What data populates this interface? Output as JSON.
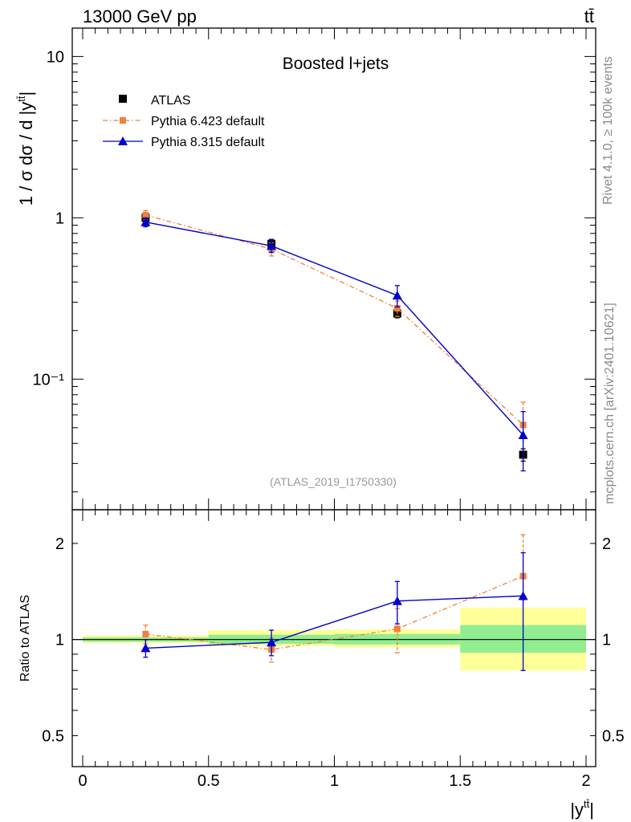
{
  "header": {
    "energy_label": "13000 GeV pp",
    "process_label": "tt̄"
  },
  "side_text": {
    "rivet": "Rivet 4.1.0, ≥ 100k events",
    "source": "mcplots.cern.ch [arXiv:2401.10621]"
  },
  "colors": {
    "atlas": "#000000",
    "pythia6": "#f0803c",
    "pythia8": "#0000cc",
    "band_inner": "#90ee90",
    "band_outer": "#ffff99"
  },
  "chart_data": [
    {
      "type": "scatter",
      "title": "Boosted l+jets",
      "watermark": "(ATLAS_2019_I1750330)",
      "ylabel": "1 / σ dσ / d |y^{t̄t}|",
      "yscale": "log",
      "ylim": [
        0.0155,
        15
      ],
      "xlim": [
        -0.05,
        2.05
      ],
      "y_tick_labels": [
        "10",
        "1",
        "10⁻¹"
      ],
      "legend": [
        "ATLAS",
        "Pythia 6.423 default",
        "Pythia 8.315 default"
      ],
      "legend_position": "top-left",
      "x": [
        0.25,
        0.75,
        1.25,
        1.75
      ],
      "x_bin_edges": [
        0,
        0.5,
        1,
        1.5,
        2
      ],
      "series": [
        {
          "name": "ATLAS",
          "values": [
            1.0,
            0.69,
            0.255,
            0.034
          ],
          "errors": [
            0.035,
            0.045,
            0.015,
            0.003
          ]
        },
        {
          "name": "Pythia 6.423 default",
          "values": [
            1.04,
            0.64,
            0.275,
            0.052
          ],
          "errors": [
            0.07,
            0.06,
            0.03,
            0.02
          ]
        },
        {
          "name": "Pythia 8.315 default",
          "values": [
            0.94,
            0.67,
            0.33,
            0.045
          ],
          "errors": [
            0.06,
            0.06,
            0.05,
            0.018
          ]
        }
      ]
    },
    {
      "type": "scatter",
      "ylabel": "Ratio to ATLAS",
      "xlabel": "|y^{tt̄}|",
      "yscale": "log",
      "ylim": [
        0.4,
        2.55
      ],
      "xlim": [
        -0.05,
        2.05
      ],
      "x_tick_labels": [
        "0",
        "0.5",
        "1",
        "1.5",
        "2"
      ],
      "y_tick_labels": [
        "2",
        "1",
        "0.5"
      ],
      "x": [
        0.25,
        0.75,
        1.25,
        1.75
      ],
      "bands": {
        "inner": [
          [
            0.985,
            1.015
          ],
          [
            0.97,
            1.035
          ],
          [
            0.965,
            1.04
          ],
          [
            0.91,
            1.11
          ]
        ],
        "outer": [
          [
            0.975,
            1.03
          ],
          [
            0.955,
            1.07
          ],
          [
            0.945,
            1.075
          ],
          [
            0.8,
            1.26
          ]
        ]
      },
      "series": [
        {
          "name": "Pythia 6.423 default",
          "values": [
            1.04,
            0.93,
            1.08,
            1.58
          ],
          "errors_low": [
            0.07,
            0.08,
            0.17,
            0.25
          ],
          "errors_high": [
            0.07,
            0.08,
            0.17,
            0.55
          ]
        },
        {
          "name": "Pythia 8.315 default",
          "values": [
            0.94,
            0.98,
            1.32,
            1.37
          ],
          "errors_low": [
            0.06,
            0.09,
            0.2,
            0.57
          ],
          "errors_high": [
            0.06,
            0.09,
            0.2,
            0.5
          ]
        }
      ]
    }
  ]
}
